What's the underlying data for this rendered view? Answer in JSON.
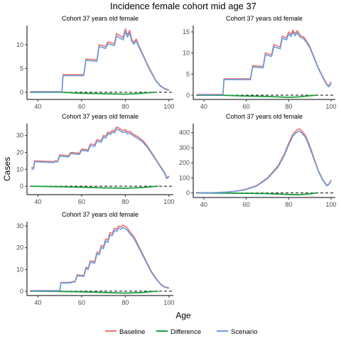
{
  "figure": {
    "title": "Incidence female cohort mid age 37",
    "xlabel": "Age",
    "ylabel": "Cases"
  },
  "legend": {
    "placement": "bottom",
    "entries": [
      {
        "label": "Baseline",
        "color": "#e8736d"
      },
      {
        "label": "Difference",
        "color": "#1a9e3a"
      },
      {
        "label": "Scenario",
        "color": "#6b9be0"
      }
    ]
  },
  "chart_data": [
    {
      "type": "line",
      "title": "Cohort 37 years old female",
      "xlim": [
        35,
        102
      ],
      "ylim": [
        -1.5,
        14
      ],
      "xticks": [
        40,
        60,
        80,
        100
      ],
      "yticks": [
        0,
        5,
        10
      ],
      "hline": 0,
      "series": [
        {
          "name": "Baseline",
          "x": [
            37,
            51,
            51.5,
            61,
            62,
            67,
            68,
            71,
            72,
            75,
            76,
            79,
            80,
            81,
            82,
            83,
            84,
            85,
            86,
            88,
            90,
            92,
            94,
            96,
            98,
            100
          ],
          "y": [
            0.15,
            0.15,
            3.7,
            3.7,
            7.0,
            6.8,
            10.0,
            9.6,
            10.6,
            10.2,
            12.3,
            11.5,
            13.3,
            12.0,
            13.0,
            11.0,
            10.5,
            11.2,
            10.0,
            8.0,
            6.0,
            4.2,
            2.5,
            1.4,
            0.8,
            0.5
          ]
        },
        {
          "name": "Scenario",
          "x": [
            37,
            51,
            51.5,
            61,
            62,
            67,
            68,
            71,
            72,
            75,
            76,
            79,
            80,
            81,
            82,
            83,
            84,
            85,
            86,
            88,
            90,
            92,
            94,
            96,
            98,
            100
          ],
          "y": [
            0.1,
            0.1,
            3.5,
            3.5,
            6.7,
            6.5,
            9.6,
            9.2,
            10.2,
            9.8,
            11.8,
            11.0,
            12.8,
            11.6,
            12.5,
            10.6,
            10.1,
            10.8,
            9.7,
            7.8,
            5.8,
            4.0,
            2.4,
            1.3,
            0.7,
            0.4
          ]
        },
        {
          "name": "Difference",
          "x": [
            37,
            51,
            60,
            70,
            80,
            85,
            90,
            94
          ],
          "y": [
            0,
            0,
            -0.2,
            -0.3,
            -0.4,
            -0.3,
            -0.1,
            0
          ]
        }
      ]
    },
    {
      "type": "line",
      "title": "Cohort 37 years old female",
      "xlim": [
        35,
        102
      ],
      "ylim": [
        -1,
        16.5
      ],
      "xticks": [
        40,
        60,
        80,
        100
      ],
      "yticks": [
        0,
        5,
        10,
        15
      ],
      "hline": 0,
      "series": [
        {
          "name": "Baseline",
          "x": [
            37,
            49,
            49.5,
            62,
            63,
            68,
            69,
            72,
            73,
            76,
            77,
            79,
            80,
            81,
            82,
            83,
            84,
            85,
            86,
            87,
            88,
            90,
            92,
            94,
            96,
            98,
            99,
            100
          ],
          "y": [
            0.2,
            0.2,
            3.9,
            3.9,
            7.0,
            6.8,
            10.0,
            9.6,
            12.0,
            11.4,
            14.0,
            13.6,
            15.0,
            14.4,
            15.4,
            14.6,
            15.3,
            14.5,
            14.0,
            13.8,
            13.2,
            11.5,
            9.0,
            6.5,
            4.5,
            2.6,
            2.2,
            3.2
          ]
        },
        {
          "name": "Scenario",
          "x": [
            37,
            49,
            49.5,
            62,
            63,
            68,
            69,
            72,
            73,
            76,
            77,
            79,
            80,
            81,
            82,
            83,
            84,
            85,
            86,
            87,
            88,
            90,
            92,
            94,
            96,
            98,
            99,
            100
          ],
          "y": [
            0.1,
            0.1,
            3.7,
            3.7,
            6.7,
            6.5,
            9.6,
            9.2,
            11.5,
            11.0,
            13.5,
            13.1,
            14.5,
            13.9,
            14.9,
            14.1,
            14.8,
            14.0,
            13.6,
            13.4,
            12.8,
            11.2,
            8.8,
            6.3,
            4.3,
            2.4,
            2.0,
            2.8
          ]
        },
        {
          "name": "Difference",
          "x": [
            37,
            49,
            60,
            70,
            80,
            85,
            90,
            93
          ],
          "y": [
            0,
            0,
            -0.2,
            -0.3,
            -0.5,
            -0.4,
            -0.1,
            0
          ]
        }
      ]
    },
    {
      "type": "line",
      "title": "Cohort 37 years old female",
      "xlim": [
        35,
        102
      ],
      "ylim": [
        -5,
        37
      ],
      "xticks": [
        40,
        60,
        80,
        100
      ],
      "yticks": [
        0,
        10,
        20,
        30
      ],
      "hline": 0,
      "series": [
        {
          "name": "Baseline",
          "x": [
            37,
            38,
            38.5,
            47,
            48,
            49,
            50,
            54,
            55,
            59,
            60,
            63,
            64,
            66,
            67,
            69,
            70,
            71,
            72,
            73,
            74,
            75,
            76,
            77,
            78,
            79,
            80,
            81,
            82,
            84,
            86,
            88,
            90,
            92,
            94,
            96,
            98,
            99,
            100
          ],
          "y": [
            11,
            11,
            15,
            14.5,
            15,
            14.8,
            18.5,
            18,
            20,
            19.5,
            22,
            21.5,
            25,
            24.5,
            27.5,
            27,
            30,
            29.5,
            32,
            31.5,
            33,
            32.5,
            35,
            34.5,
            33.5,
            32.8,
            33.5,
            32,
            32.5,
            30.5,
            29,
            27,
            24,
            20,
            16,
            12,
            8,
            5,
            6
          ]
        },
        {
          "name": "Scenario",
          "x": [
            37,
            38,
            38.5,
            47,
            48,
            49,
            50,
            54,
            55,
            59,
            60,
            63,
            64,
            66,
            67,
            69,
            70,
            71,
            72,
            73,
            74,
            75,
            76,
            77,
            78,
            79,
            80,
            81,
            82,
            84,
            86,
            88,
            90,
            92,
            94,
            96,
            98,
            99,
            100
          ],
          "y": [
            10,
            10,
            14.5,
            14,
            14.5,
            14.3,
            17.8,
            17.3,
            19.3,
            18.8,
            21.2,
            20.7,
            24,
            23.5,
            26.5,
            26,
            29,
            28.5,
            31,
            30.5,
            32,
            31.5,
            33.8,
            33.3,
            32.4,
            31.7,
            32.3,
            30.9,
            31.4,
            29.5,
            28,
            26,
            23.2,
            19.3,
            15.5,
            11.5,
            7.5,
            4.5,
            5.5
          ]
        },
        {
          "name": "Difference",
          "x": [
            37,
            50,
            60,
            70,
            80,
            88,
            92,
            95
          ],
          "y": [
            0,
            -0.3,
            -0.6,
            -1.0,
            -1.2,
            -0.8,
            -0.3,
            0
          ]
        }
      ]
    },
    {
      "type": "line",
      "title": "Cohort 37 years old female",
      "xlim": [
        35,
        102
      ],
      "ylim": [
        -30,
        460
      ],
      "xticks": [
        40,
        60,
        80,
        100
      ],
      "yticks": [
        0,
        100,
        200,
        300,
        400
      ],
      "hline": 0,
      "series": [
        {
          "name": "Baseline",
          "x": [
            37,
            45,
            50,
            55,
            60,
            65,
            70,
            75,
            78,
            80,
            82,
            84,
            85,
            86,
            88,
            90,
            92,
            94,
            96,
            98,
            99,
            100
          ],
          "y": [
            2,
            3,
            6,
            12,
            25,
            50,
            100,
            180,
            260,
            330,
            390,
            420,
            425,
            415,
            380,
            310,
            230,
            150,
            90,
            50,
            60,
            85
          ]
        },
        {
          "name": "Scenario",
          "x": [
            37,
            45,
            50,
            55,
            60,
            65,
            70,
            75,
            78,
            80,
            82,
            84,
            85,
            86,
            88,
            90,
            92,
            94,
            96,
            98,
            99,
            100
          ],
          "y": [
            1,
            2,
            5,
            11,
            23,
            47,
            95,
            172,
            250,
            318,
            378,
            405,
            410,
            400,
            367,
            298,
            222,
            145,
            86,
            47,
            56,
            80
          ]
        },
        {
          "name": "Difference",
          "x": [
            37,
            50,
            60,
            70,
            80,
            85,
            90,
            93
          ],
          "y": [
            0,
            -1,
            -2,
            -4,
            -10,
            -12,
            -6,
            0
          ]
        }
      ]
    },
    {
      "type": "line",
      "title": "Cohort 37 years old female",
      "xlim": [
        35,
        102
      ],
      "ylim": [
        -2,
        32
      ],
      "xticks": [
        40,
        60,
        80,
        100
      ],
      "yticks": [
        0,
        10,
        20,
        30
      ],
      "hline": 0,
      "series": [
        {
          "name": "Baseline",
          "x": [
            37,
            50,
            50.5,
            55,
            56,
            57,
            58,
            61,
            62,
            63,
            64,
            66,
            67,
            68,
            69,
            70,
            71,
            72,
            73,
            74,
            75,
            76,
            77,
            78,
            79,
            80,
            81,
            82,
            84,
            86,
            88,
            90,
            92,
            94,
            96,
            98,
            100
          ],
          "y": [
            0.3,
            0.3,
            4,
            4,
            4.5,
            4.4,
            7.5,
            7.2,
            11,
            10.6,
            14,
            13.6,
            18,
            17.5,
            21,
            20.5,
            24,
            23.5,
            27,
            26.5,
            29,
            28.5,
            30,
            29.5,
            30.5,
            29.8,
            29,
            27.5,
            25,
            21,
            17,
            13,
            9,
            6,
            3.5,
            2,
            1.5
          ]
        },
        {
          "name": "Scenario",
          "x": [
            37,
            50,
            50.5,
            55,
            56,
            57,
            58,
            61,
            62,
            63,
            64,
            66,
            67,
            68,
            69,
            70,
            71,
            72,
            73,
            74,
            75,
            76,
            77,
            78,
            79,
            80,
            81,
            82,
            84,
            86,
            88,
            90,
            92,
            94,
            96,
            98,
            100
          ],
          "y": [
            0.2,
            0.2,
            3.8,
            3.8,
            4.3,
            4.2,
            7.1,
            6.8,
            10.4,
            10,
            13.3,
            12.9,
            17.2,
            16.7,
            20.1,
            19.6,
            23,
            22.5,
            26,
            25.5,
            28,
            27.5,
            29,
            28.5,
            29.4,
            28.7,
            28,
            26.6,
            24.2,
            20.3,
            16.4,
            12.5,
            8.6,
            5.7,
            3.3,
            1.8,
            1.3
          ]
        },
        {
          "name": "Difference",
          "x": [
            37,
            50,
            60,
            70,
            80,
            88,
            92,
            95
          ],
          "y": [
            0,
            -0.1,
            -0.3,
            -0.6,
            -0.9,
            -0.6,
            -0.2,
            0
          ]
        }
      ]
    }
  ]
}
